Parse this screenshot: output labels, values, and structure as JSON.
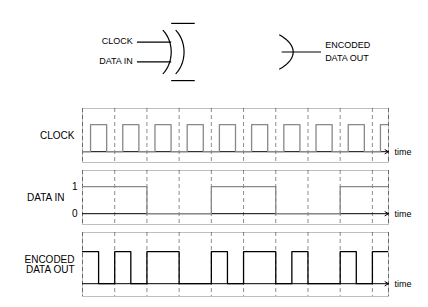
{
  "chart_data": [
    {
      "type": "diagram",
      "annotations": [
        "CLOCK",
        "DATA IN",
        "ENCODED",
        "DATA OUT"
      ]
    },
    {
      "type": "step",
      "series": [
        {
          "name": "CLOCK",
          "color": "#888888",
          "values": [
            0,
            1,
            1,
            0,
            0,
            1,
            1,
            0,
            0,
            1,
            1,
            0,
            0,
            1,
            1,
            0,
            0,
            1,
            1,
            0,
            0,
            1,
            1,
            0,
            0,
            1,
            1,
            0,
            0,
            1,
            1,
            0,
            0,
            1,
            1,
            0,
            0,
            1
          ]
        }
      ],
      "xlim": [
        0,
        38
      ],
      "ylim": [
        -0.4,
        1.6
      ],
      "xticks": [
        0,
        4,
        8,
        12,
        16,
        20,
        24,
        28,
        32,
        36,
        38
      ],
      "grid": "x",
      "tick_labels": false,
      "annotations": [
        "time"
      ]
    },
    {
      "type": "step",
      "series": [
        {
          "name": "DATA IN",
          "color": "#888888",
          "values": [
            1,
            1,
            1,
            1,
            1,
            1,
            1,
            1,
            0,
            0,
            0,
            0,
            0,
            0,
            0,
            0,
            1,
            1,
            1,
            1,
            1,
            1,
            1,
            1,
            0,
            0,
            0,
            0,
            0,
            0,
            0,
            0,
            1,
            1,
            1,
            1,
            1,
            1
          ]
        }
      ],
      "xlim": [
        0,
        38
      ],
      "ylim": [
        -0.4,
        1.6
      ],
      "xticks": [
        0,
        4,
        8,
        12,
        16,
        20,
        24,
        28,
        32,
        36,
        38
      ],
      "yticks": [
        0,
        1
      ],
      "grid": "x",
      "tick_labels": "y",
      "annotations": [
        "time"
      ]
    },
    {
      "type": "step",
      "series": [
        {
          "name": "ENCODED\nDATA OUT",
          "color": "#000000",
          "values": [
            1,
            1,
            0,
            0,
            1,
            1,
            0,
            0,
            1,
            1,
            1,
            1,
            0,
            0,
            0,
            0,
            1,
            1,
            0,
            0,
            1,
            1,
            1,
            1,
            0,
            0,
            1,
            1,
            0,
            0,
            0,
            0,
            1,
            1,
            0,
            0,
            1,
            1
          ]
        }
      ],
      "xlim": [
        0,
        38
      ],
      "ylim": [
        -0.4,
        1.6
      ],
      "xticks": [
        0,
        4,
        8,
        12,
        16,
        20,
        24,
        28,
        32,
        36,
        38
      ],
      "grid": "x",
      "tick_labels": false,
      "annotations": [
        "time"
      ]
    }
  ]
}
